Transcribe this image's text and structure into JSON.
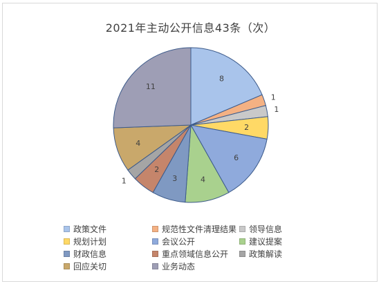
{
  "chart_data": {
    "type": "pie",
    "title": "2021年主动公开信息43条（次）",
    "categories": [
      "政策文件",
      "规范性文件清理结果",
      "领导信息",
      "规划计划",
      "会议公开",
      "建议提案",
      "财政信息",
      "重点领域信息公开",
      "政策解读",
      "回应关切",
      "业务动态"
    ],
    "values": [
      8,
      1,
      1,
      2,
      6,
      4,
      3,
      2,
      1,
      4,
      11
    ],
    "colors": [
      "#a9c4eb",
      "#f4b183",
      "#c9c9c9",
      "#ffd966",
      "#8faadc",
      "#a9d18e",
      "#7f99c2",
      "#c5856b",
      "#a5a5a5",
      "#c9a86b",
      "#9e9eb5"
    ],
    "legend_position": "bottom",
    "data_labels": true
  }
}
